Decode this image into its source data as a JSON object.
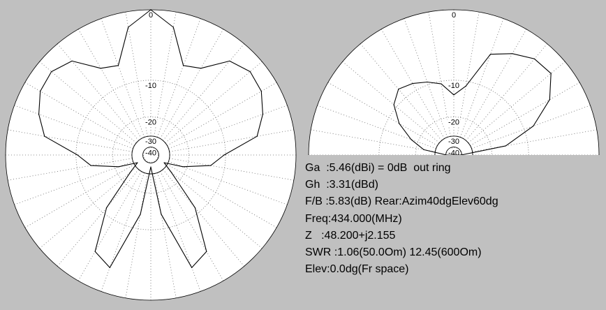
{
  "chart_data": [
    {
      "type": "polar-line",
      "view": "azimuth",
      "radial_unit": "dB",
      "radial_ticks": [
        "0",
        "-10",
        "-20",
        "-30",
        "-40"
      ],
      "angle_grid_step_deg": 10,
      "angles_deg": [
        0,
        10,
        20,
        30,
        40,
        50,
        60,
        70,
        80,
        90,
        100,
        110,
        120,
        130,
        140,
        150,
        160,
        170,
        180,
        190,
        200,
        210,
        220,
        230,
        240,
        250,
        260,
        270,
        280,
        290,
        300,
        310,
        320,
        330,
        340,
        350,
        360
      ],
      "values_db": [
        0.0,
        -2.2,
        -7.1,
        -6.4,
        -3.2,
        -2.2,
        -2.5,
        -3.7,
        -5.3,
        -10.4,
        -13.8,
        -22.0,
        -33.0,
        -26.0,
        -11.6,
        -4.8,
        -3.6,
        -14.0,
        -36.0,
        -14.0,
        -3.6,
        -4.8,
        -11.6,
        -26.0,
        -33.0,
        -22.0,
        -13.8,
        -10.4,
        -5.3,
        -3.7,
        -2.5,
        -2.2,
        -3.2,
        -6.4,
        -7.1,
        -2.2,
        0.0
      ]
    },
    {
      "type": "polar-line",
      "view": "elevation",
      "radial_unit": "dB",
      "radial_ticks": [
        "0",
        "-10",
        "-20",
        "-30",
        "-40"
      ],
      "angle_grid_step_deg": 10,
      "angles_deg": [
        0,
        10,
        20,
        30,
        40,
        50,
        60,
        70,
        80,
        90,
        270,
        280,
        290,
        300,
        310,
        320,
        330,
        340,
        350,
        360
      ],
      "values_db": [
        -14.0,
        -11.3,
        -5.4,
        -4.0,
        -2.8,
        -2.6,
        -4.9,
        -8.6,
        -16.0,
        -40.0,
        -40.0,
        -24.0,
        -18.0,
        -13.2,
        -9.5,
        -8.4,
        -8.9,
        -9.6,
        -10.7,
        -14.0
      ]
    }
  ],
  "info": {
    "ga": "Ga  :5.46(dBi) = 0dB  out ring",
    "gh": "Gh  :3.31(dBd)",
    "fb": "F/B :5.83(dB) Rear:Azim40dgElev60dg",
    "freq": "Freq:434.000(MHz)",
    "z": "Z   :48.200+j2.155",
    "swr": "SWR :1.06(50.0Om) 12.45(600Om)",
    "elev": "Elev:0.0dg(Fr space)"
  }
}
